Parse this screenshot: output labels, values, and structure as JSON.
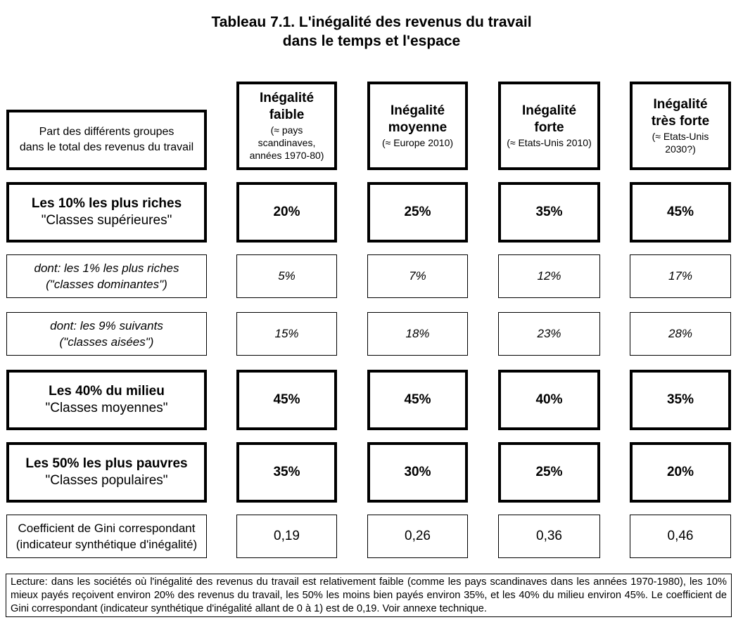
{
  "title": {
    "line1": "Tableau 7.1. L'inégalité des revenus du travail",
    "line2": "dans le temps et l'espace"
  },
  "corner_label": {
    "line1": "Part des différents groupes",
    "line2": "dans le total des revenus du travail"
  },
  "columns": [
    {
      "line1": "Inégalité",
      "line2": "faible",
      "sub": [
        "(≈ pays",
        "scandinaves,",
        "années 1970-80)"
      ]
    },
    {
      "line1": "Inégalité",
      "line2": "moyenne",
      "sub": [
        "(≈ Europe 2010)"
      ]
    },
    {
      "line1": "Inégalité",
      "line2": "forte",
      "sub": [
        "(≈ Etats-Unis 2010)"
      ]
    },
    {
      "line1": "Inégalité",
      "line2": "très forte",
      "sub": [
        "(≈ Etats-Unis",
        "2030?)"
      ]
    }
  ],
  "rows": [
    {
      "label1": "Les 10% les plus riches",
      "label2": "\"Classes supérieures\"",
      "values": [
        "20%",
        "25%",
        "35%",
        "45%"
      ]
    },
    {
      "label1": "dont: les 1% les plus riches",
      "label2": "(\"classes dominantes\")",
      "values": [
        "5%",
        "7%",
        "12%",
        "17%"
      ]
    },
    {
      "label1": "dont: les 9% suivants",
      "label2": "(\"classes aisées\")",
      "values": [
        "15%",
        "18%",
        "23%",
        "28%"
      ]
    },
    {
      "label1": "Les 40% du milieu",
      "label2": "\"Classes moyennes\"",
      "values": [
        "45%",
        "45%",
        "40%",
        "35%"
      ]
    },
    {
      "label1": "Les 50% les plus pauvres",
      "label2": "\"Classes populaires\"",
      "values": [
        "35%",
        "30%",
        "25%",
        "20%"
      ]
    },
    {
      "label1": "Coefficient de Gini correspondant",
      "label2": "(indicateur synthétique d'inégalité)",
      "values": [
        "0,19",
        "0,26",
        "0,36",
        "0,46"
      ]
    }
  ],
  "note": "Lecture: dans les sociétés où l'inégalité des revenus du travail est relativement faible (comme les pays scandinaves dans les années 1970-1980), les 10% mieux payés reçoivent environ 20% des revenus du travail, les 50% les moins bien payés environ 35%, et les 40% du milieu environ 45%. Le coefficient de Gini correspondant (indicateur synthétique d'inégalité allant de 0 à 1) est de 0,19. Voir annexe technique."
}
